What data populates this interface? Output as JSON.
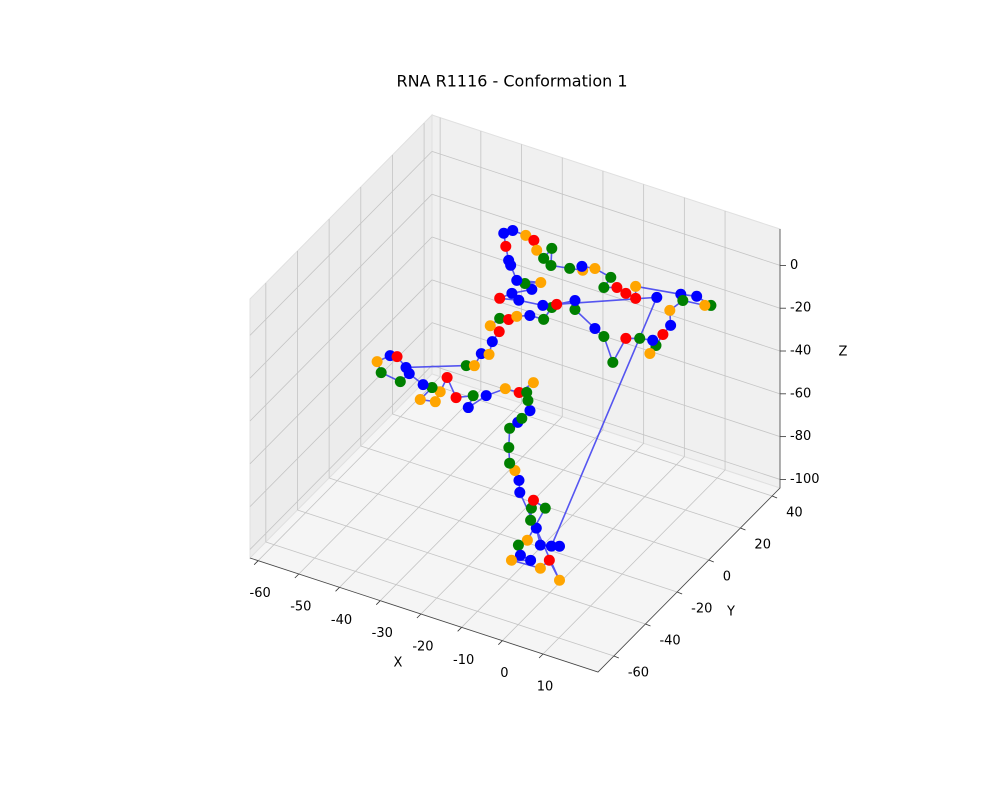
{
  "chart_data": {
    "type": "scatter3d",
    "title": "RNA R1116 - Conformation 1",
    "xlabel": "X",
    "ylabel": "Y",
    "zlabel": "Z",
    "xlim": [
      -62,
      23.5
    ],
    "ylim": [
      -70,
      45
    ],
    "zlim": [
      -104,
      17
    ],
    "xticks": [
      -60,
      -50,
      -40,
      -30,
      -20,
      -10,
      0,
      10
    ],
    "yticks": [
      -60,
      -40,
      -20,
      0,
      20,
      40
    ],
    "zticks": [
      -100,
      -80,
      -60,
      -40,
      -20,
      0
    ],
    "grid": true,
    "line_color": "#3a3af0",
    "x": [
      -19.2,
      -22.7,
      -26.1,
      -30.8,
      -35.2,
      -34.0,
      -38.2,
      -40.4,
      -42.1,
      -43.3,
      -47.0,
      -44.1,
      -46.3,
      -49.7,
      -51.9,
      -56.6,
      -57.6,
      -54.4,
      -52.7,
      -50.5,
      -35.7,
      -33.7,
      -32.0,
      -30.1,
      -29.3,
      -27.6,
      -29.8,
      -40.9,
      -38.7,
      -36.7,
      -33.5,
      -30.1,
      -28.1,
      -30.3,
      -36.2,
      -40.9,
      -37.9,
      -33.0,
      -34.7,
      -30.8,
      -36.7,
      -38.2,
      -38.7,
      -39.4,
      -39.9,
      -37.7,
      -34.5,
      -32.5,
      -31.8,
      -30.1,
      -28.1,
      -28.3,
      -23.7,
      -20.5,
      -20.7,
      -17.5,
      -13.6,
      -15.3,
      -12.1,
      -9.9,
      -7.5,
      -7.5,
      3.6,
      7.5,
      11.0,
      9.5,
      4.1,
      0.9,
      1.1,
      -0.8,
      -2.5,
      -4.0,
      -3.3,
      -6.5,
      -9.9,
      -13.1,
      -15.3,
      -17.5,
      -22.4,
      -22.4,
      -26.9,
      -2.3,
      3.1,
      5.1,
      0.4,
      -0.6,
      -2.0,
      -1.8,
      -1.3,
      1.6,
      -2.8,
      -5.0,
      -4.5,
      -2.0,
      -6.7,
      0.4,
      2.6,
      5.1,
      -13.6,
      -13.8,
      -14.8,
      -16.1,
      -16.3,
      -16.1,
      -14.1,
      -13.1,
      -11.1,
      -11.6,
      -11.9
    ],
    "y": [
      -1,
      -1,
      -1,
      -1,
      -1,
      -1,
      -1,
      -1,
      -1,
      -1,
      -1,
      -1,
      -1,
      -1,
      -1,
      -1,
      -1,
      -1,
      -1,
      -1,
      -1,
      -1,
      -1,
      -1,
      -1,
      -1,
      -1,
      33.5,
      33.5,
      33.5,
      33.5,
      33.5,
      33.5,
      33.5,
      33.5,
      33.5,
      33.5,
      33.5,
      33.5,
      33.5,
      33.5,
      33.5,
      33.5,
      33.5,
      33.5,
      33.5,
      33.5,
      33.5,
      33.5,
      33.5,
      33.5,
      33.5,
      33.5,
      33.5,
      33.5,
      33.5,
      33.5,
      33.5,
      33.5,
      33.5,
      33.5,
      33.5,
      33.5,
      33.5,
      33.5,
      33.5,
      33.5,
      33.5,
      33.5,
      33.5,
      33.5,
      33.5,
      33.5,
      33.5,
      33.5,
      33.5,
      33.5,
      33.5,
      33.5,
      33.5,
      33.5,
      33.5,
      -47,
      -47,
      -47,
      -47,
      -47,
      -47,
      -47,
      -47,
      -47,
      -47,
      -47,
      -47,
      -47,
      -47,
      -47,
      -47,
      -24,
      -24,
      -24,
      -24,
      -24,
      -24,
      -24,
      -24,
      -24,
      -24,
      -24
    ],
    "z": [
      -47.0,
      -53.8,
      -54.1,
      -60.3,
      -68.6,
      -62.3,
      -65.8,
      -57.8,
      -65.5,
      -70.9,
      -72.2,
      -64.8,
      -64.8,
      -61.8,
      -66.9,
      -65.6,
      -61.1,
      -56.3,
      -55.7,
      -59.4,
      -49.3,
      -48.1,
      -41.4,
      -40.6,
      -34.1,
      -28.4,
      -27.0,
      -56.3,
      -55.4,
      -52.7,
      -50.3,
      -50.0,
      -43.2,
      -43.6,
      -44.9,
      -46.9,
      -42.7,
      -37.8,
      -36.1,
      -33.2,
      -35.9,
      -29.8,
      -27.8,
      -21.7,
      -15.9,
      -13.2,
      -13.5,
      -14.6,
      -18.8,
      -21.5,
      -15.6,
      -23.7,
      -22.2,
      -21.1,
      -19.4,
      -18.4,
      -20.1,
      -25.9,
      -23.9,
      -25.3,
      -26.1,
      -20.5,
      -17.3,
      -15.8,
      -17.9,
      -18.8,
      -19.9,
      -26.5,
      -33.4,
      -38.8,
      -45.0,
      -49.7,
      -43.1,
      -44.2,
      -46.3,
      -59.5,
      -48.8,
      -46.4,
      -40.6,
      -36.4,
      -41.0,
      -22.4,
      -75.1,
      -73.9,
      -76.3,
      -69.0,
      -66.2,
      -60.4,
      -56.4,
      -58.3,
      -76.0,
      -79.7,
      -84.1,
      -84.9,
      -87.8,
      -87.1,
      -82.0,
      -89.8,
      -77.6,
      -72.1,
      -68.1,
      -65.5,
      -58.3,
      -49.2,
      -45.2,
      -42.7,
      -37.8,
      -33.4,
      -29.8
    ],
    "colors": [
      "orange",
      "red",
      "orange",
      "blue",
      "blue",
      "green",
      "red",
      "red",
      "orange",
      "orange",
      "orange",
      "green",
      "blue",
      "blue",
      "green",
      "green",
      "orange",
      "blue",
      "red",
      "blue",
      "green",
      "orange",
      "blue",
      "orange",
      "blue",
      "red",
      "orange",
      "green",
      "red",
      "orange",
      "blue",
      "green",
      "green",
      "blue",
      "blue",
      "red",
      "blue",
      "blue",
      "green",
      "orange",
      "blue",
      "blue",
      "blue",
      "red",
      "blue",
      "blue",
      "orange",
      "red",
      "orange",
      "green",
      "green",
      "green",
      "green",
      "orange",
      "blue",
      "orange",
      "green",
      "green",
      "red",
      "red",
      "red",
      "orange",
      "blue",
      "blue",
      "green",
      "orange",
      "green",
      "orange",
      "blue",
      "red",
      "green",
      "orange",
      "blue",
      "green",
      "red",
      "green",
      "green",
      "blue",
      "green",
      "blue",
      "red",
      "blue",
      "blue",
      "blue",
      "blue",
      "blue",
      "green",
      "green",
      "red",
      "green",
      "orange",
      "green",
      "blue",
      "blue",
      "orange",
      "orange",
      "red",
      "orange",
      "blue",
      "blue",
      "orange",
      "green",
      "green",
      "green",
      "blue",
      "green",
      "blue",
      "green",
      "green"
    ]
  }
}
